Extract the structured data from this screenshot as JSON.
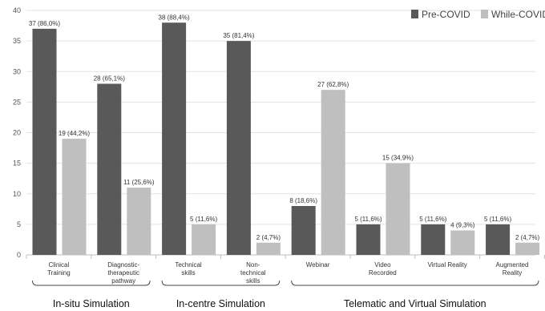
{
  "chart_data": {
    "type": "bar",
    "categories": [
      [
        "Clinical",
        "Training"
      ],
      [
        "Diagnostic-",
        "therapeutic",
        "pathway"
      ],
      [
        "Technical",
        "skills"
      ],
      [
        "Non-",
        "technical",
        "skills"
      ],
      [
        "Webinar"
      ],
      [
        "Video",
        "Recorded"
      ],
      [
        "Virtual Reality"
      ],
      [
        "Augmented",
        "Reality"
      ]
    ],
    "series": [
      {
        "name": "Pre-COVID",
        "color": "#595959",
        "values": [
          37,
          28,
          38,
          35,
          8,
          5,
          5,
          5
        ],
        "labels": [
          "37 (86,0%)",
          "28 (65,1%)",
          "38 (88,4%)",
          "35 (81,4%)",
          "8 (18,6%)",
          "5 (11,6%)",
          "5 (11,6%)",
          "5 (11,6%)"
        ]
      },
      {
        "name": "While-COVID",
        "color": "#bfbfbf",
        "values": [
          19,
          11,
          5,
          2,
          27,
          15,
          4,
          2
        ],
        "labels": [
          "19 (44,2%)",
          "11 (25,6%)",
          "5 (11,6%)",
          "2 (4,7%)",
          "27 (62,8%)",
          "15 (34,9%)",
          "4 (9,3%)",
          "2 (4,7%)"
        ]
      }
    ],
    "groups": [
      {
        "label": "In-situ Simulation",
        "first": 0,
        "last": 1
      },
      {
        "label": "In-centre Simulation",
        "first": 2,
        "last": 3
      },
      {
        "label": "Telematic and Virtual Simulation",
        "first": 4,
        "last": 7
      }
    ],
    "ylim": [
      0,
      40
    ],
    "yticks": [
      "0",
      "5",
      "10",
      "15",
      "20",
      "25",
      "30",
      "35",
      "40"
    ],
    "grid": true,
    "legend_position": "top-right",
    "title": "",
    "xlabel": "",
    "ylabel": ""
  }
}
